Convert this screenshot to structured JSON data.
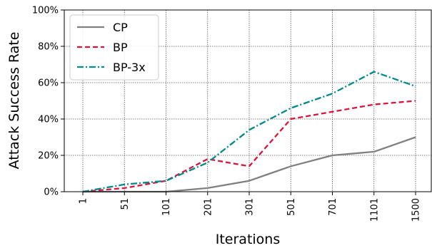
{
  "chart_data": {
    "type": "line",
    "xlabel": "Iterations",
    "ylabel": "Attack Success Rate",
    "categories": [
      "1",
      "51",
      "101",
      "201",
      "301",
      "501",
      "701",
      "1101",
      "1500"
    ],
    "ylim": [
      0,
      100
    ],
    "yticks": [
      "0%",
      "20%",
      "40%",
      "60%",
      "80%",
      "100%"
    ],
    "ytick_values": [
      0,
      20,
      40,
      60,
      80,
      100
    ],
    "grid": true,
    "legend_position": "top-left",
    "series": [
      {
        "name": "CP",
        "color": "#808080",
        "dash": "solid",
        "values": [
          0,
          0,
          0,
          2,
          6,
          14,
          20,
          22,
          30
        ]
      },
      {
        "name": "BP",
        "color": "#dc143c",
        "dash": "dashed",
        "values": [
          0,
          2,
          6,
          18,
          14,
          40,
          44,
          48,
          50
        ]
      },
      {
        "name": "BP-3x",
        "color": "#008b8b",
        "dash": "dashdot",
        "values": [
          0,
          4,
          6,
          16,
          34,
          46,
          54,
          66,
          58
        ]
      }
    ]
  }
}
